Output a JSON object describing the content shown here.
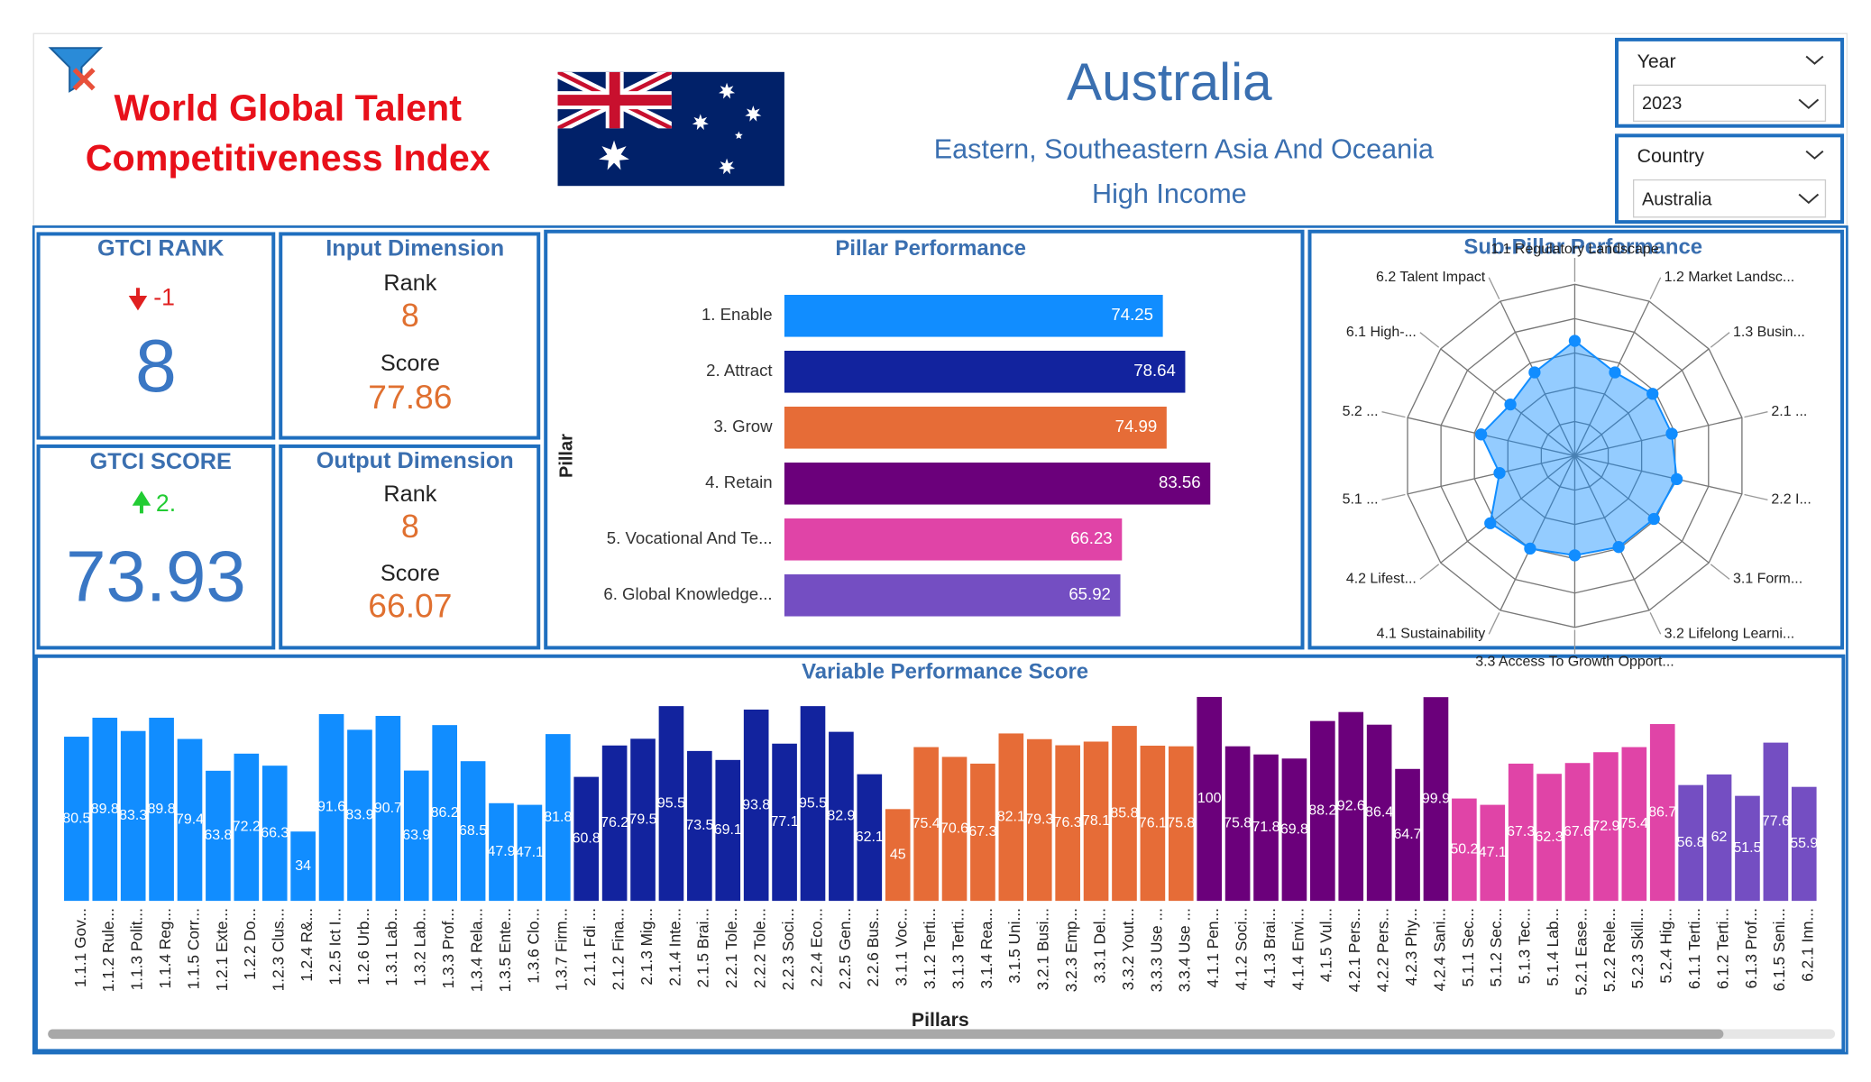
{
  "header": {
    "title_line1": "World Global Talent",
    "title_line2": "Competitiveness Index",
    "country": "Australia",
    "region": "Eastern, Southeastern Asia And Oceania",
    "income": "High Income"
  },
  "slicers": [
    {
      "label": "Year",
      "value": "2023"
    },
    {
      "label": "Country",
      "value": "Australia"
    }
  ],
  "kpis": {
    "gtci_rank": {
      "title": "GTCI RANK",
      "value": 8,
      "change": -1
    },
    "gtci_score": {
      "title": "GTCI SCORE",
      "value": 73.93,
      "change": "2."
    },
    "input": {
      "title": "Input Dimension",
      "rank_label": "Rank",
      "rank": 8,
      "score_label": "Score",
      "score": 77.86
    },
    "output": {
      "title": "Output Dimension",
      "rank_label": "Rank",
      "rank": 8,
      "score_label": "Score",
      "score": 66.07
    }
  },
  "chart_data": [
    {
      "type": "hbar",
      "title": "Pillar Performance",
      "y_label": "Pillar",
      "categories": [
        "1. Enable",
        "2. Attract",
        "3. Grow",
        "4. Retain",
        "5. Vocational And Te...",
        "6. Global Knowledge..."
      ],
      "values": [
        74.25,
        78.64,
        74.99,
        83.56,
        66.23,
        65.92
      ],
      "colors": [
        "#118dff",
        "#12239e",
        "#e66c37",
        "#6b007b",
        "#e044a7",
        "#744ec2"
      ],
      "xlim": [
        0,
        100
      ]
    },
    {
      "type": "radar",
      "title": "Sub-Pillar Performance",
      "categories": [
        "1.1 Regulatory Landscape",
        "1.2 Market Landsc...",
        "1.3 Busin...",
        "2.1 ...",
        "2.2 I...",
        "3.1 Form...",
        "3.2 Lifelong Learni...",
        "3.3 Access To Growth Opport...",
        "4.1 Sustainability",
        "4.2 Lifest...",
        "5.1 ...",
        "5.2 ...",
        "6.1 High-...",
        "6.2 Talent Impact"
      ],
      "values": [
        67,
        54,
        58,
        58,
        61,
        59,
        59,
        58,
        60,
        63,
        45,
        56,
        48,
        54
      ],
      "color": "#118dff",
      "rlim": [
        0,
        100
      ],
      "grid": true
    },
    {
      "type": "bar",
      "title": "Variable Performance Score",
      "x_label": "Pillars",
      "ylim": [
        0,
        100
      ],
      "series": [
        {
          "color": "#118dff",
          "categories": [
            "1.1.1 Gov...",
            "1.1.2 Rule...",
            "1.1.3 Polit...",
            "1.1.4 Reg...",
            "1.1.5 Corr...",
            "1.2.1 Exte...",
            "1.2.2 Do...",
            "1.2.3 Clus...",
            "1.2.4 R&...",
            "1.2.5 Ict I...",
            "1.2.6 Urb...",
            "1.3.1 Lab...",
            "1.3.2 Lab...",
            "1.3.3 Prof...",
            "1.3.4 Rela...",
            "1.3.5 Ente...",
            "1.3.6 Clo...",
            "1.3.7 Firm..."
          ],
          "values": [
            80.5,
            89.8,
            83.3,
            89.8,
            79.4,
            63.8,
            72.2,
            66.3,
            34.0,
            91.6,
            83.9,
            90.7,
            63.9,
            86.2,
            68.5,
            47.9,
            47.1,
            81.8
          ]
        },
        {
          "color": "#12239e",
          "categories": [
            "2.1.1 Fdi ...",
            "2.1.2 Fina...",
            "2.1.3 Mig...",
            "2.1.4 Inte...",
            "2.1.5 Brai...",
            "2.2.1 Tole...",
            "2.2.2 Tole...",
            "2.2.3 Soci...",
            "2.2.4 Eco...",
            "2.2.5 Gen...",
            "2.2.6 Bus..."
          ],
          "values": [
            60.8,
            76.2,
            79.5,
            95.5,
            73.5,
            69.1,
            93.8,
            77.1,
            95.5,
            82.9,
            62.1
          ]
        },
        {
          "color": "#e66c37",
          "categories": [
            "3.1.1 Voc...",
            "3.1.2 Terti...",
            "3.1.3 Terti...",
            "3.1.4 Rea...",
            "3.1.5 Uni...",
            "3.2.1 Busi...",
            "3.2.3 Emp...",
            "3.3.1 Del...",
            "3.3.2 Yout...",
            "3.3.3 Use ...",
            "3.3.4 Use ..."
          ],
          "values": [
            45.0,
            75.4,
            70.6,
            67.3,
            82.1,
            79.3,
            76.3,
            78.1,
            85.8,
            76.1,
            75.8
          ]
        },
        {
          "color": "#6b007b",
          "categories": [
            "4.1.1 Pen...",
            "4.1.2 Soci...",
            "4.1.3 Brai...",
            "4.1.4 Envi...",
            "4.1.5 Vul...",
            "4.2.1 Pers...",
            "4.2.2 Pers...",
            "4.2.3 Phy...",
            "4.2.4 Sani..."
          ],
          "values": [
            100,
            75.8,
            71.8,
            69.8,
            88.2,
            92.6,
            86.4,
            64.7,
            99.9
          ]
        },
        {
          "color": "#e044a7",
          "categories": [
            "5.1.1 Sec...",
            "5.1.2 Sec...",
            "5.1.3 Tec...",
            "5.1.4 Lab...",
            "5.2.1 Ease...",
            "5.2.2 Rele...",
            "5.2.3 Skill...",
            "5.2.4 Hig..."
          ],
          "values": [
            50.2,
            47.1,
            67.3,
            62.3,
            67.6,
            72.9,
            75.4,
            86.7
          ]
        },
        {
          "color": "#744ec2",
          "categories": [
            "6.1.1 Terti...",
            "6.1.2 Terti...",
            "6.1.3 Prof...",
            "6.1.5 Seni...",
            "6.2.1 Inn..."
          ],
          "values": [
            56.8,
            62.0,
            51.5,
            77.6,
            55.9
          ]
        }
      ]
    }
  ]
}
